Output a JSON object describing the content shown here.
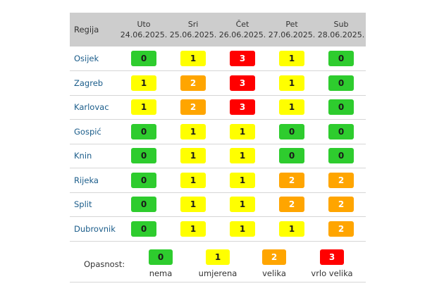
{
  "header": {
    "region_label": "Regija",
    "days": [
      {
        "name": "Uto",
        "date": "24.06.2025."
      },
      {
        "name": "Sri",
        "date": "25.06.2025."
      },
      {
        "name": "Čet",
        "date": "26.06.2025."
      },
      {
        "name": "Pet",
        "date": "27.06.2025."
      },
      {
        "name": "Sub",
        "date": "28.06.2025."
      }
    ]
  },
  "rows": [
    {
      "region": "Osijek",
      "levels": [
        "0",
        "1",
        "3",
        "1",
        "0"
      ]
    },
    {
      "region": "Zagreb",
      "levels": [
        "1",
        "2",
        "3",
        "1",
        "0"
      ]
    },
    {
      "region": "Karlovac",
      "levels": [
        "1",
        "2",
        "3",
        "1",
        "0"
      ]
    },
    {
      "region": "Gospić",
      "levels": [
        "0",
        "1",
        "1",
        "0",
        "0"
      ]
    },
    {
      "region": "Knin",
      "levels": [
        "0",
        "1",
        "1",
        "0",
        "0"
      ]
    },
    {
      "region": "Rijeka",
      "levels": [
        "0",
        "1",
        "1",
        "2",
        "2"
      ]
    },
    {
      "region": "Split",
      "levels": [
        "0",
        "1",
        "1",
        "2",
        "2"
      ]
    },
    {
      "region": "Dubrovnik",
      "levels": [
        "0",
        "1",
        "1",
        "1",
        "2"
      ]
    }
  ],
  "legend": {
    "title": "Opasnost:",
    "items": [
      {
        "level": "0",
        "label": "nema"
      },
      {
        "level": "1",
        "label": "umjerena"
      },
      {
        "level": "2",
        "label": "velika"
      },
      {
        "level": "3",
        "label": "vrlo velika"
      }
    ]
  },
  "colors": {
    "level_0": "#2ecc2e",
    "level_1": "#ffff00",
    "level_2": "#ffa500",
    "level_3": "#ff0000",
    "header_bg": "#cdcdcd",
    "region_text": "#1a5c8a"
  }
}
